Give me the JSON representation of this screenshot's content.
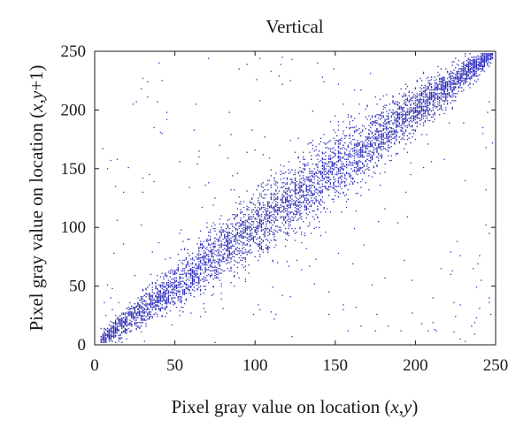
{
  "chart_data": {
    "type": "scatter",
    "title": "Vertical",
    "xlabel": "Pixel gray value on location (x,y)",
    "ylabel": "Pixel gray value on location (x,y+1)",
    "xlim": [
      0,
      250
    ],
    "ylim": [
      0,
      250
    ],
    "xticks": [
      0,
      50,
      100,
      150,
      200,
      250
    ],
    "yticks": [
      0,
      50,
      100,
      150,
      200,
      250
    ],
    "grid": false,
    "marker_color": "#2b2bb8",
    "series": [
      {
        "description_points": "dense cloud of pixel pairs clustered along the diagonal y = x, widening at mid-range values, with sparse outliers",
        "points": []
      }
    ]
  }
}
